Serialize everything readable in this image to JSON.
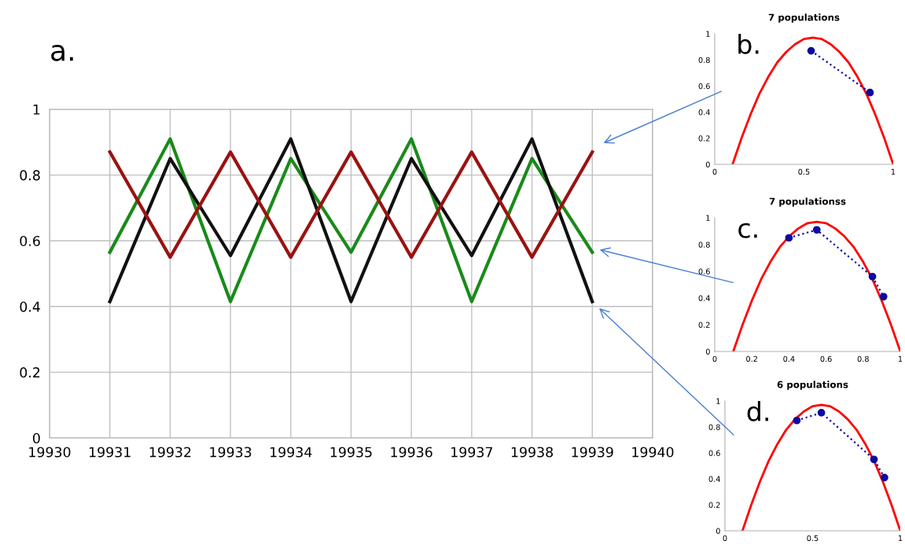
{
  "chart_data": [
    {
      "type": "line",
      "annotations": [
        "a."
      ],
      "x": [
        19931,
        19932,
        19933,
        19934,
        19935,
        19936,
        19937,
        19938,
        19939
      ],
      "xlim": [
        19930,
        19940
      ],
      "xticks": [
        19930,
        19931,
        19932,
        19933,
        19934,
        19935,
        19936,
        19937,
        19938,
        19939,
        19940
      ],
      "ylim": [
        0,
        1
      ],
      "yticks": [
        0,
        0.2,
        0.4,
        0.6,
        0.8,
        1
      ],
      "grid": true,
      "marker": "none",
      "series": [
        {
          "color": "#1a8a1a",
          "values": [
            0.565,
            0.91,
            0.415,
            0.85,
            0.565,
            0.91,
            0.415,
            0.85,
            0.565
          ]
        },
        {
          "color": "#111111",
          "values": [
            0.415,
            0.85,
            0.555,
            0.91,
            0.415,
            0.85,
            0.555,
            0.91,
            0.415
          ]
        },
        {
          "color": "#9a1212",
          "values": [
            0.87,
            0.55,
            0.87,
            0.55,
            0.87,
            0.55,
            0.87,
            0.55,
            0.87
          ]
        }
      ]
    },
    {
      "type": "line",
      "title": "7 populations",
      "annotations": [
        "b."
      ],
      "xlim": [
        0,
        1
      ],
      "xticks": [
        0,
        0.5,
        1
      ],
      "ylim": [
        0,
        1
      ],
      "yticks": [
        0,
        0.2,
        0.4,
        0.6,
        0.8,
        1
      ],
      "series": [
        {
          "color": "#ff0000",
          "marker": "none",
          "line_style": "solid",
          "x": [
            0.1,
            0.15,
            0.2,
            0.25,
            0.3,
            0.35,
            0.4,
            0.45,
            0.5,
            0.55,
            0.6,
            0.65,
            0.7,
            0.75,
            0.8,
            0.85,
            0.9,
            0.95,
            1.0
          ],
          "values": [
            0,
            0.2,
            0.38,
            0.54,
            0.67,
            0.78,
            0.86,
            0.92,
            0.96,
            0.97,
            0.96,
            0.92,
            0.86,
            0.78,
            0.67,
            0.54,
            0.38,
            0.2,
            0
          ]
        },
        {
          "color": "#0a0aa0",
          "marker": "circle",
          "line_style": "dotted",
          "x": [
            0.54,
            0.87
          ],
          "values": [
            0.87,
            0.55
          ]
        }
      ]
    },
    {
      "type": "line",
      "title": "7 populationss",
      "annotations": [
        "c."
      ],
      "xlim": [
        0,
        1
      ],
      "xticks": [
        0,
        0.2,
        0.4,
        0.6,
        0.8,
        1
      ],
      "ylim": [
        0,
        1
      ],
      "yticks": [
        0,
        0.2,
        0.4,
        0.6,
        0.8,
        1
      ],
      "series": [
        {
          "color": "#ff0000",
          "marker": "none",
          "line_style": "solid",
          "x": [
            0.1,
            0.15,
            0.2,
            0.25,
            0.3,
            0.35,
            0.4,
            0.45,
            0.5,
            0.55,
            0.6,
            0.65,
            0.7,
            0.75,
            0.8,
            0.85,
            0.9,
            0.95,
            1.0
          ],
          "values": [
            0,
            0.2,
            0.38,
            0.54,
            0.67,
            0.78,
            0.86,
            0.92,
            0.96,
            0.97,
            0.96,
            0.92,
            0.86,
            0.78,
            0.67,
            0.54,
            0.38,
            0.2,
            0
          ]
        },
        {
          "color": "#0a0aa0",
          "marker": "circle",
          "line_style": "dotted",
          "x": [
            0.4,
            0.55,
            0.85,
            0.91
          ],
          "values": [
            0.85,
            0.91,
            0.56,
            0.41
          ]
        }
      ]
    },
    {
      "type": "line",
      "title": "6 populations",
      "annotations": [
        "d."
      ],
      "xlim": [
        0,
        1
      ],
      "xticks": [
        0,
        0.5,
        1
      ],
      "ylim": [
        0,
        1
      ],
      "yticks": [
        0,
        0.2,
        0.4,
        0.6,
        0.8,
        1
      ],
      "series": [
        {
          "color": "#ff0000",
          "marker": "none",
          "line_style": "solid",
          "x": [
            0.1,
            0.15,
            0.2,
            0.25,
            0.3,
            0.35,
            0.4,
            0.45,
            0.5,
            0.55,
            0.6,
            0.65,
            0.7,
            0.75,
            0.8,
            0.85,
            0.9,
            0.95,
            1.0
          ],
          "values": [
            0,
            0.2,
            0.38,
            0.54,
            0.67,
            0.78,
            0.86,
            0.92,
            0.96,
            0.97,
            0.96,
            0.92,
            0.86,
            0.78,
            0.67,
            0.54,
            0.38,
            0.2,
            0
          ]
        },
        {
          "color": "#0a0aa0",
          "marker": "circle",
          "line_style": "dotted",
          "x": [
            0.41,
            0.55,
            0.85,
            0.91
          ],
          "values": [
            0.85,
            0.91,
            0.55,
            0.41
          ]
        }
      ]
    }
  ]
}
